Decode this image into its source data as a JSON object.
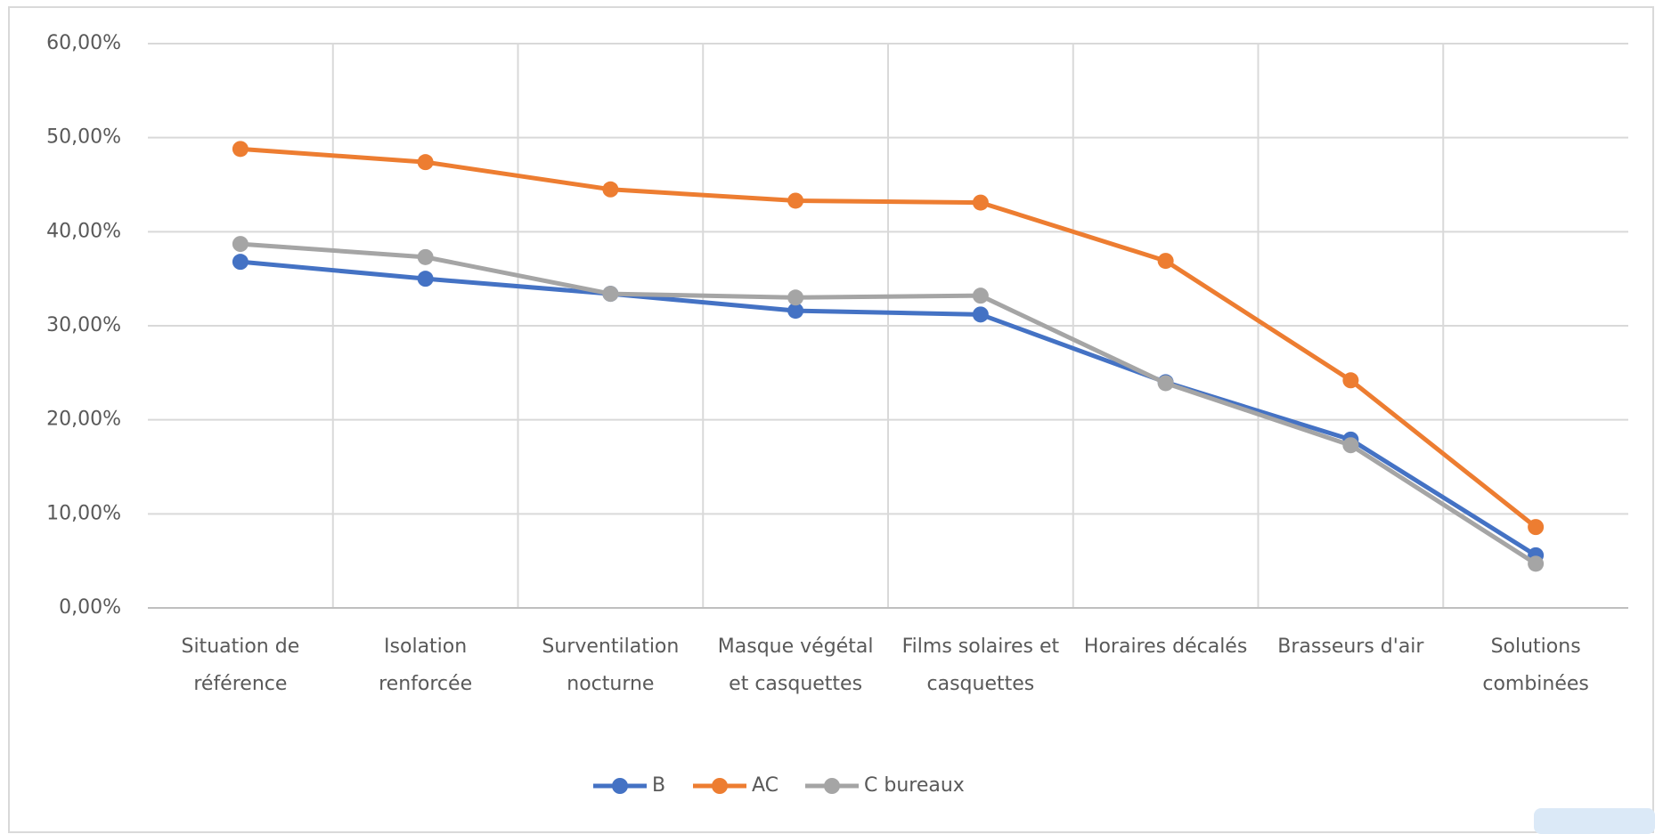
{
  "chart_data": {
    "type": "line",
    "categories": [
      "Situation de référence",
      "Isolation renforcée",
      "Surventilation nocturne",
      "Masque végétal et casquettes",
      "Films solaires et casquettes",
      "Horaires décalés",
      "Brasseurs d'air",
      "Solutions combinées"
    ],
    "series": [
      {
        "name": "B",
        "color": "#4472c4",
        "values": [
          36.8,
          35.0,
          33.4,
          31.6,
          31.2,
          24.0,
          17.9,
          5.6
        ]
      },
      {
        "name": "AC",
        "color": "#ed7d31",
        "values": [
          48.8,
          47.4,
          44.5,
          43.3,
          43.1,
          36.9,
          24.2,
          8.6
        ]
      },
      {
        "name": "C bureaux",
        "color": "#a5a5a5",
        "values": [
          38.7,
          37.3,
          33.4,
          33.0,
          33.2,
          23.9,
          17.3,
          4.7
        ]
      }
    ],
    "ylim": [
      0,
      60
    ],
    "yticks": [
      {
        "value": 0,
        "label": "0,00%"
      },
      {
        "value": 10,
        "label": "10,00%"
      },
      {
        "value": 20,
        "label": "20,00%"
      },
      {
        "value": 30,
        "label": "30,00%"
      },
      {
        "value": 40,
        "label": "40,00%"
      },
      {
        "value": 50,
        "label": "50,00%"
      },
      {
        "value": 60,
        "label": "60,00%"
      }
    ],
    "grid": true,
    "legend": "bottom"
  }
}
